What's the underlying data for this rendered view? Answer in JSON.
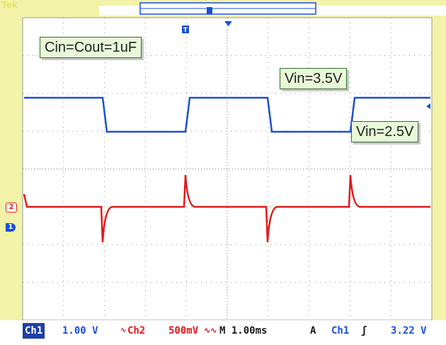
{
  "brand": "Tek",
  "labels": {
    "cin_cout": "Cin=Cout=1uF",
    "vin_high": "Vin=3.5V",
    "vin_low": "Vin=2.5V"
  },
  "markers": {
    "ch2": "2",
    "ch1": "1",
    "trigger_top": "T"
  },
  "status": {
    "ch1_label": "Ch1",
    "ch1_scale": "1.00 V",
    "ch2_label": "Ch2",
    "ch2_scale": "500mV",
    "timebase": "M 1.00ms",
    "trigger_mode": "A",
    "trigger_source": "Ch1",
    "trigger_slope": "ʃ",
    "trigger_level": "3.22 V"
  },
  "colors": {
    "ch1": "#1a4fd6",
    "ch2": "#e11a1a",
    "grid": "#8a8a8a",
    "background": "#ffffff"
  }
}
